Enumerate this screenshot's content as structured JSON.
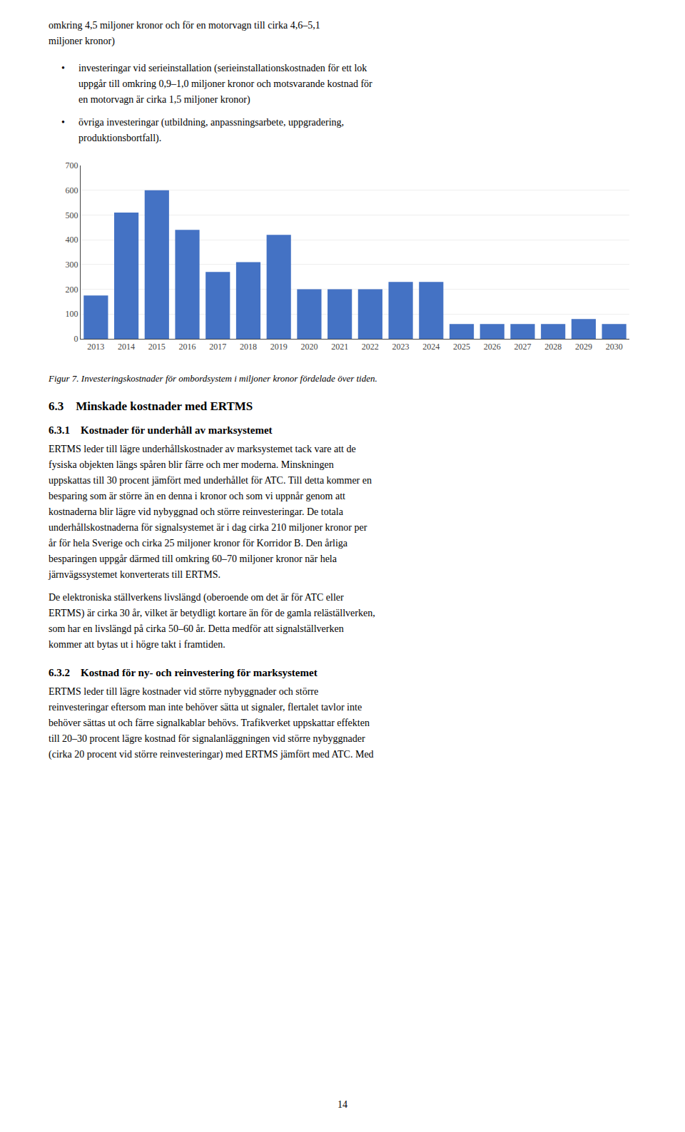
{
  "chart_data": {
    "type": "bar",
    "title": "Figur 7. Investeringskostnader för ombordsystem i miljoner kronor fördelade över tiden.",
    "categories": [
      "2013",
      "2014",
      "2015",
      "2016",
      "2017",
      "2018",
      "2019",
      "2020",
      "2021",
      "2022",
      "2023",
      "2024",
      "2025",
      "2026",
      "2027",
      "2028",
      "2029",
      "2030"
    ],
    "values": [
      175,
      510,
      600,
      440,
      270,
      310,
      420,
      200,
      200,
      200,
      230,
      230,
      60,
      60,
      60,
      60,
      80,
      60
    ],
    "color": "#4472C4",
    "ylim": [
      0,
      700
    ],
    "yticks": [
      0,
      100,
      200,
      300,
      400,
      500,
      600,
      700
    ],
    "grid": true,
    "annotations": [
      "omkring 4,5 miljoner kronor och för en motorvagn till cirka 4,6–5,1",
      "miljoner kronor)",
      "•",
      "investeringar vid serieinstallation (serieinstallationskostnaden för ett lok",
      "uppgår till omkring 0,9–1,0 miljoner kronor och motsvarande kostnad för",
      "en motorvagn är cirka 1,5 miljoner kronor)",
      "•",
      "övriga investeringar (utbildning, anpassningsarbete, uppgradering,",
      "produktionsbortfall).",
      "6.3 Minskade kostnader med ERTMS",
      "6.3.1 Kostnader för underhåll av marksystemet",
      "ERTMS leder till lägre underhållskostnader av marksystemet tack vare att de",
      "fysiska objekten längs spåren blir färre och mer moderna. Minskningen",
      "uppskattas till 30 procent jämfört med underhållet för ATC. Till detta kommer en",
      "besparing som är större än en denna i kronor och som vi uppnår genom att",
      "kostnaderna blir lägre vid nybyggnad och större reinvesteringar. De totala",
      "underhållskostnaderna för signalsystemet är i dag cirka 210 miljoner kronor per",
      "år för hela Sverige och cirka 25 miljoner kronor för Korridor B. Den årliga",
      "besparingen uppgår därmed till omkring 60–70 miljoner kronor när hela",
      "järnvägssystemet konverterats till ERTMS.",
      "De elektroniska ställverkens livslängd (oberoende om det är för ATC eller",
      "ERTMS) är cirka 30 år, vilket är betydligt kortare än för de gamla reläställverken,",
      "som har en livslängd på cirka 50–60 år. Detta medför att signalställverken",
      "kommer att bytas ut i högre takt i framtiden.",
      "6.3.2 Kostnad för ny- och reinvestering för marksystemet",
      "ERTMS leder till lägre kostnader vid större nybyggnader och större",
      "reinvesteringar eftersom man inte behöver sätta ut signaler, flertalet tavlor inte",
      "behöver sättas ut och färre signalkablar behövs. Trafikverket uppskattar effekten",
      "till 20–30 procent lägre kostnad för signalanläggningen vid större nybyggnader",
      "(cirka 20 procent vid större reinvesteringar) med ERTMS jämfört med ATC. Med",
      "14"
    ]
  }
}
